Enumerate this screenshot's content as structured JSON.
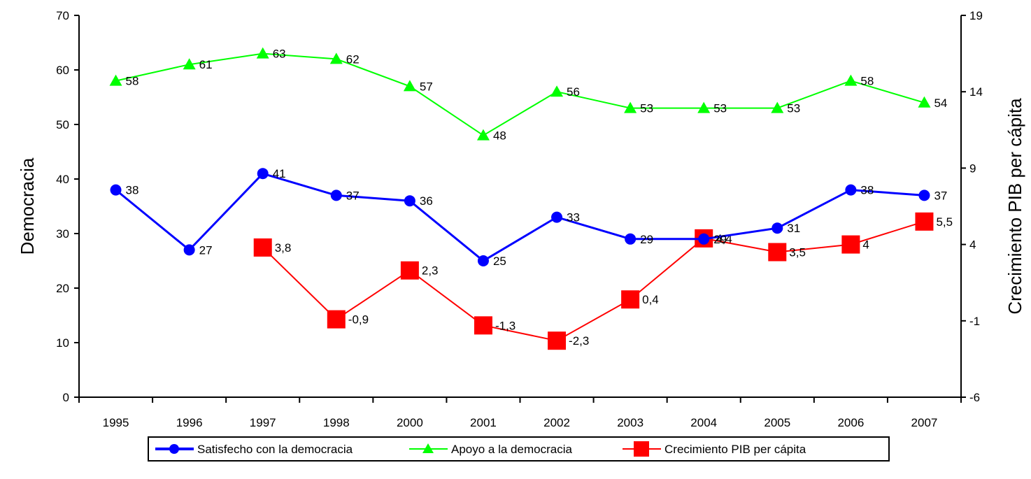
{
  "chart_data": {
    "type": "line",
    "categories": [
      "1995",
      "1996",
      "1997",
      "1998",
      "2000",
      "2001",
      "2002",
      "2003",
      "2004",
      "2005",
      "2006",
      "2007"
    ],
    "ylabel_left": "Democracia",
    "ylabel_right": "Crecimiento PIB per cápita",
    "ylim_left": [
      0,
      70
    ],
    "yticks_left": [
      0,
      10,
      20,
      30,
      40,
      50,
      60,
      70
    ],
    "ylim_right": [
      -6,
      19
    ],
    "yticks_right": [
      -6,
      -1,
      4,
      9,
      14,
      19
    ],
    "grid": false,
    "legend_position": "bottom",
    "series": [
      {
        "name": "Satisfecho con la democracia",
        "axis": "left",
        "color": "#0000ff",
        "marker": "circle",
        "values": [
          38,
          27,
          41,
          37,
          36,
          25,
          33,
          29,
          29,
          31,
          38,
          37
        ],
        "labels": [
          "38",
          "27",
          "41",
          "37",
          "36",
          "25",
          "33",
          "29",
          "29",
          "31",
          "38",
          "37"
        ]
      },
      {
        "name": "Apoyo a la democracia",
        "axis": "left",
        "color": "#00ff00",
        "marker": "triangle",
        "values": [
          58,
          61,
          63,
          62,
          57,
          48,
          56,
          53,
          53,
          53,
          58,
          54
        ],
        "labels": [
          "58",
          "61",
          "63",
          "62",
          "57",
          "48",
          "56",
          "53",
          "53",
          "53",
          "58",
          "54"
        ]
      },
      {
        "name": "Crecimiento PIB per cápita",
        "axis": "right",
        "color": "#ff0000",
        "marker": "square",
        "values": [
          null,
          null,
          3.8,
          -0.9,
          2.3,
          -1.3,
          -2.3,
          0.4,
          4.4,
          3.5,
          4,
          5.5
        ],
        "labels": [
          null,
          null,
          "3,8",
          "-0,9",
          "2,3",
          "-1,3",
          "-2,3",
          "0,4",
          "4,4",
          "3,5",
          "4",
          "5,5"
        ]
      }
    ]
  }
}
